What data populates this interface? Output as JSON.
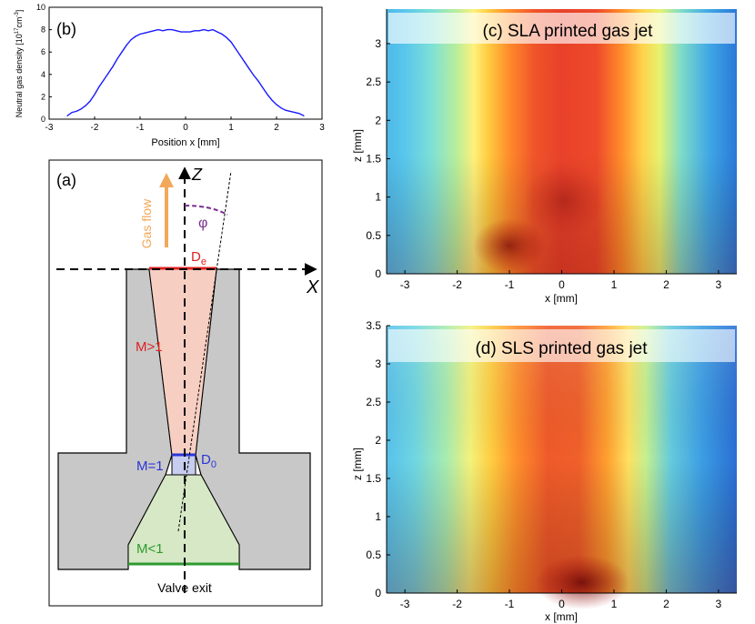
{
  "colors": {
    "line_blue": "#1a1aff",
    "gas_gray": "#c8c8c8",
    "supersonic": "#f7cfc2",
    "sonic": "#c7cdee",
    "subsonic": "#d6e8c6",
    "arrow_orange": "#f2a85a",
    "phi_purple": "#7a2f8f",
    "mach_red": "#e02020",
    "mach_blue": "#2a35d8",
    "mach_green": "#2e9a2e"
  },
  "panel_b": {
    "label": "(b)",
    "ylabel": "Neutral gas density [10",
    "ylabel_sup": "17",
    "ylabel_unit": "cm",
    "ylabel_unit_sup": "-3",
    "ylabel_close": "]",
    "xlabel": "Position x [mm]",
    "chart_data": {
      "type": "line",
      "xlim": [
        -3,
        3
      ],
      "ylim": [
        0,
        10
      ],
      "xticks": [
        "-3",
        "-2",
        "-1",
        "0",
        "1",
        "2",
        "3"
      ],
      "yticks": [
        "0",
        "2",
        "4",
        "6",
        "8",
        "10"
      ],
      "x": [
        -2.6,
        -2.5,
        -2.4,
        -2.3,
        -2.2,
        -2.1,
        -2.0,
        -1.9,
        -1.8,
        -1.7,
        -1.6,
        -1.5,
        -1.4,
        -1.3,
        -1.2,
        -1.1,
        -1.0,
        -0.9,
        -0.8,
        -0.7,
        -0.6,
        -0.5,
        -0.4,
        -0.3,
        -0.2,
        -0.1,
        0.0,
        0.1,
        0.2,
        0.3,
        0.4,
        0.5,
        0.6,
        0.7,
        0.8,
        0.9,
        1.0,
        1.1,
        1.2,
        1.3,
        1.4,
        1.5,
        1.6,
        1.7,
        1.8,
        1.9,
        2.0,
        2.1,
        2.2,
        2.3,
        2.4,
        2.5,
        2.6
      ],
      "y": [
        0.3,
        0.6,
        0.7,
        0.9,
        1.2,
        1.6,
        2.2,
        2.9,
        3.5,
        4.1,
        4.7,
        5.4,
        6.0,
        6.6,
        7.1,
        7.4,
        7.6,
        7.7,
        7.8,
        7.9,
        8.0,
        7.9,
        8.0,
        8.0,
        7.9,
        7.8,
        7.8,
        7.8,
        7.9,
        7.9,
        8.0,
        7.9,
        8.0,
        7.8,
        7.6,
        7.3,
        6.9,
        6.3,
        5.7,
        5.1,
        4.5,
        3.9,
        3.4,
        2.8,
        2.2,
        1.7,
        1.3,
        1.0,
        0.8,
        0.7,
        0.6,
        0.5,
        0.3
      ]
    }
  },
  "panel_a": {
    "label": "(a)",
    "axis_z": "Z",
    "axis_x": "X",
    "gas_flow": "Gas flow",
    "phi": "φ",
    "de": "D",
    "de_sub": "e",
    "d0": "D",
    "d0_sub": "0",
    "m_super": "M>1",
    "m_sonic": "M=1",
    "m_sub": "M<1",
    "valve": "Valve exit"
  },
  "panel_c": {
    "title": "(c) SLA printed gas jet",
    "xlabel": "x [mm]",
    "ylabel": "z [mm]",
    "xticks": [
      "-3",
      "-2",
      "-1",
      "0",
      "1",
      "2",
      "3"
    ],
    "yticks": [
      "0",
      "0.5",
      "1",
      "1.5",
      "2",
      "2.5",
      "3"
    ]
  },
  "panel_d": {
    "title": "(d) SLS printed gas jet",
    "xlabel": "x [mm]",
    "ylabel": "z [mm]",
    "xticks": [
      "-3",
      "-2",
      "-1",
      "0",
      "1",
      "2",
      "3"
    ],
    "yticks": [
      "0",
      "0.5",
      "1",
      "1.5",
      "2",
      "2.5",
      "3",
      "3.5"
    ]
  }
}
